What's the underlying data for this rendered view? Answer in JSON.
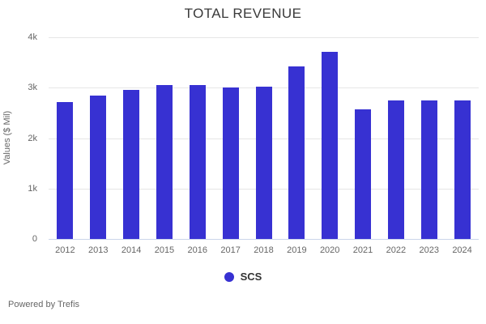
{
  "title": "TOTAL REVENUE",
  "footer": {
    "text": "Powered by Trefis"
  },
  "colors": {
    "bar": "#3731d2",
    "gridline": "#e6e6e6",
    "axis_line": "#ccd6eb",
    "tick_text": "#666666",
    "title_text": "#3a3a3a",
    "legend_text": "#333333"
  },
  "chart_data": {
    "type": "bar",
    "title": "TOTAL REVENUE",
    "xlabel": "",
    "ylabel": "Values ($ Mil)",
    "ylim": [
      0,
      4000
    ],
    "grid": "horizontal",
    "legend_position": "bottom",
    "categories": [
      "2012",
      "2013",
      "2014",
      "2015",
      "2016",
      "2017",
      "2018",
      "2019",
      "2020",
      "2021",
      "2022",
      "2023",
      "2024"
    ],
    "series": [
      {
        "name": "SCS",
        "color": "#3731d2",
        "values": [
          2710,
          2850,
          2950,
          3050,
          3050,
          3000,
          3020,
          3420,
          3710,
          2570,
          2750,
          2750,
          2750
        ]
      }
    ],
    "yticks": [
      {
        "value": 0,
        "label": "0"
      },
      {
        "value": 1000,
        "label": "1k"
      },
      {
        "value": 2000,
        "label": "2k"
      },
      {
        "value": 3000,
        "label": "3k"
      },
      {
        "value": 4000,
        "label": "4k"
      }
    ]
  }
}
